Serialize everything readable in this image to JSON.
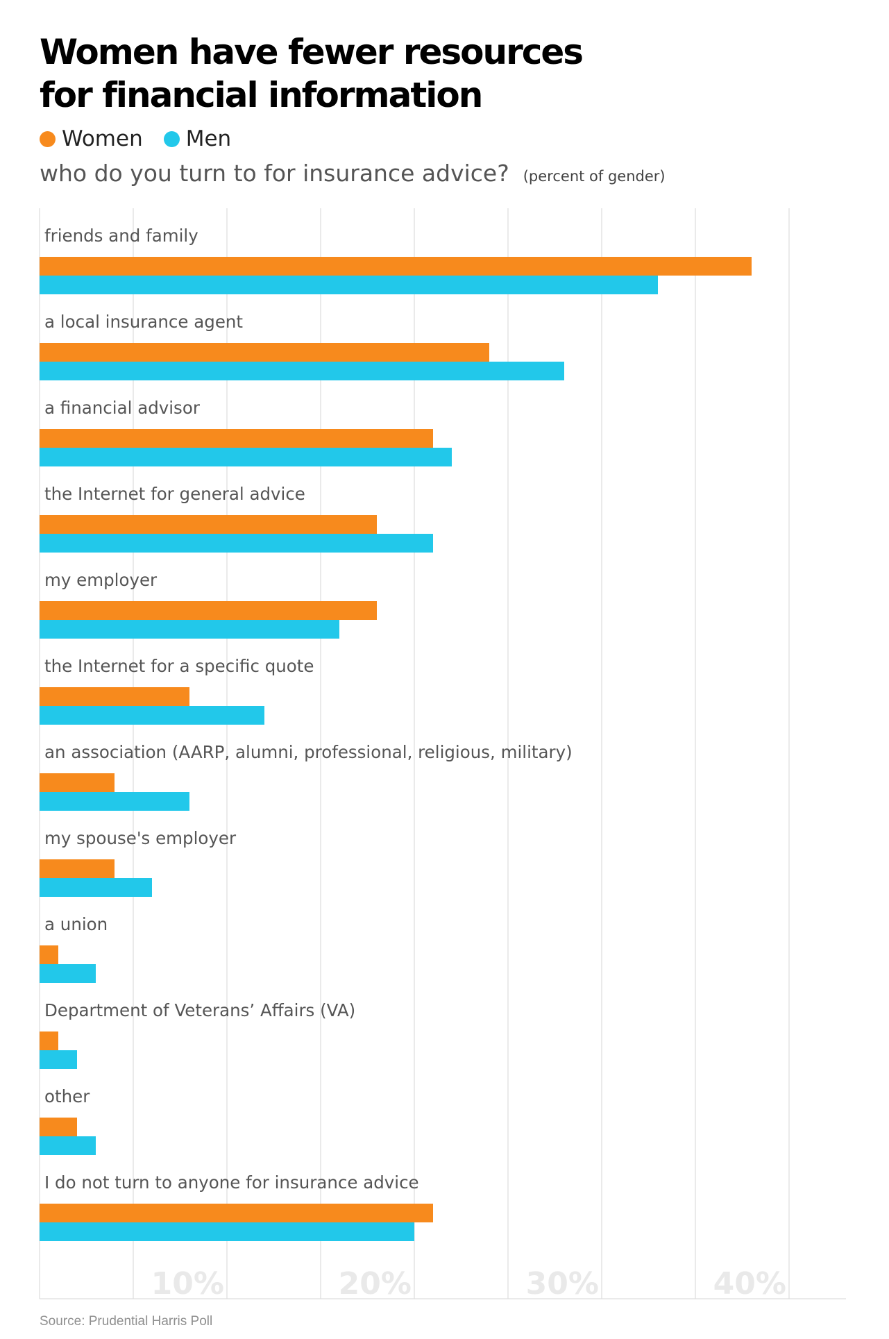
{
  "title_line1": "Women have fewer resources",
  "title_line2": "for financial information",
  "question": "who do you turn to for insurance advice?",
  "unit_note": "(percent of gender)",
  "source": "Source: Prudential Harris Poll",
  "colors": {
    "women": "#f78a1d",
    "men": "#22c8ea",
    "grid": "#dddddd",
    "tick": "#e9e9e9",
    "label": "#555555"
  },
  "chart_data": {
    "type": "bar",
    "orientation": "horizontal",
    "categories": [
      "friends and family",
      "a local insurance agent",
      "a financial advisor",
      "the Internet for general advice",
      "my employer",
      "the Internet for a specific quote",
      "an association (AARP, alumni, professional, religious, military)",
      "my spouse's employer",
      "a union",
      "Department of Veterans’ Affairs (VA)",
      "other",
      "I do not turn to anyone for insurance advice"
    ],
    "series": [
      {
        "name": "Women",
        "color": "#f78a1d",
        "values": [
          38,
          24,
          21,
          18,
          18,
          8,
          4,
          4,
          1,
          1,
          2,
          21
        ]
      },
      {
        "name": "Men",
        "color": "#22c8ea",
        "values": [
          33,
          28,
          22,
          21,
          16,
          12,
          8,
          6,
          3,
          2,
          3,
          20
        ]
      }
    ],
    "xlim": [
      0,
      43
    ],
    "x_ticks": [
      10,
      20,
      30,
      40
    ],
    "x_tick_labels": [
      "10%",
      "20%",
      "30%",
      "40%"
    ],
    "grid": true,
    "legend": "top-left"
  }
}
